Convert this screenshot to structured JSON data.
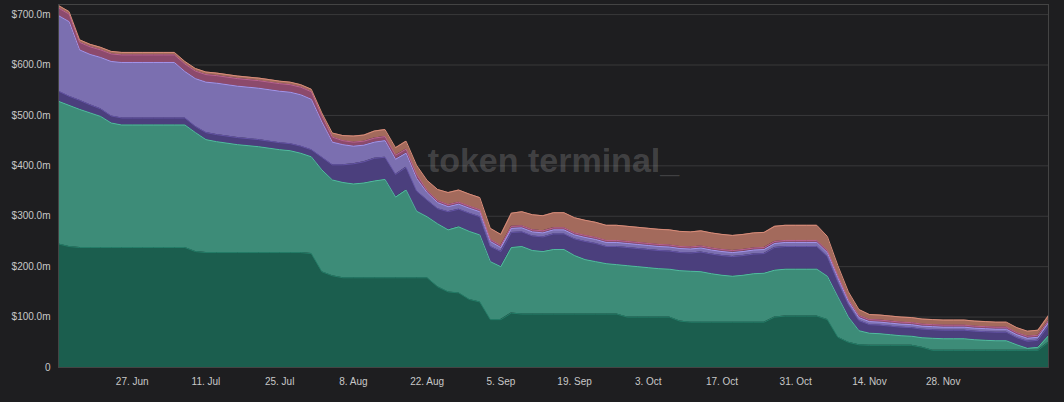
{
  "chart_data": {
    "type": "area",
    "stacked": true,
    "grid": true,
    "annotations": [
      {
        "text": "token terminal_"
      }
    ],
    "categories": [
      null,
      null,
      null,
      null,
      null,
      null,
      null,
      "27. Jun",
      null,
      null,
      null,
      null,
      null,
      null,
      "11. Jul",
      null,
      null,
      null,
      null,
      null,
      null,
      "25. Jul",
      null,
      null,
      null,
      null,
      null,
      null,
      "8. Aug",
      null,
      null,
      null,
      null,
      null,
      null,
      "22. Aug",
      null,
      null,
      null,
      null,
      null,
      null,
      "5. Sep",
      null,
      null,
      null,
      null,
      null,
      null,
      "19. Sep",
      null,
      null,
      null,
      null,
      null,
      null,
      "3. Oct",
      null,
      null,
      null,
      null,
      null,
      null,
      "17. Oct",
      null,
      null,
      null,
      null,
      null,
      null,
      "31. Oct",
      null,
      null,
      null,
      null,
      null,
      null,
      "14. Nov",
      null,
      null,
      null,
      null,
      null,
      null,
      "28. Nov",
      null,
      null,
      null,
      null,
      null,
      null,
      null,
      null,
      null,
      null
    ],
    "ylim": [
      0,
      720
    ],
    "yticks": [
      0,
      {
        "value": 100,
        "label": "$100.0m"
      },
      {
        "value": 200,
        "label": "$200.0m"
      },
      {
        "value": 300,
        "label": "$300.0m"
      },
      {
        "value": 400,
        "label": "$400.0m"
      },
      {
        "value": 500,
        "label": "$500.0m"
      },
      {
        "value": 600,
        "label": "$600.0m"
      },
      {
        "value": 700,
        "label": "$700.0m"
      }
    ],
    "series": [
      {
        "color": "#1b5e4e",
        "values": [
          245,
          240,
          238,
          238,
          238,
          238,
          238,
          238,
          238,
          238,
          238,
          238,
          238,
          230,
          228,
          228,
          228,
          228,
          228,
          228,
          228,
          228,
          228,
          228,
          226,
          190,
          182,
          178,
          178,
          178,
          178,
          178,
          178,
          178,
          178,
          178,
          160,
          150,
          148,
          135,
          130,
          95,
          95,
          108,
          106,
          106,
          106,
          106,
          106,
          106,
          106,
          106,
          106,
          106,
          100,
          100,
          100,
          100,
          100,
          92,
          90,
          90,
          90,
          90,
          90,
          90,
          90,
          90,
          100,
          102,
          102,
          102,
          102,
          95,
          60,
          50,
          45,
          44,
          44,
          44,
          44,
          44,
          40,
          34,
          34,
          34,
          34,
          34,
          34,
          34,
          34,
          34,
          34,
          34,
          50
        ]
      },
      {
        "color": "#3d8c78",
        "values": [
          283,
          280,
          274,
          267,
          260,
          247,
          243,
          243,
          243,
          243,
          243,
          243,
          243,
          236,
          224,
          220,
          217,
          214,
          212,
          210,
          207,
          204,
          202,
          197,
          192,
          202,
          190,
          189,
          186,
          188,
          192,
          195,
          160,
          174,
          132,
          121,
          125,
          123,
          131,
          135,
          133,
          115,
          105,
          130,
          134,
          126,
          124,
          128,
          128,
          116,
          108,
          104,
          100,
          98,
          102,
          100,
          98,
          96,
          95,
          100,
          101,
          100,
          96,
          93,
          91,
          93,
          96,
          97,
          93,
          93,
          93,
          93,
          93,
          86,
          80,
          50,
          28,
          24,
          23,
          21,
          19,
          18,
          19,
          24,
          23,
          23,
          23,
          21,
          20,
          19,
          19,
          11,
          4,
          6,
          13
        ]
      },
      {
        "color": "#4b3f7d",
        "values": [
          20,
          18,
          18,
          16,
          15,
          14,
          14,
          14,
          14,
          14,
          14,
          14,
          14,
          12,
          14,
          14,
          14,
          14,
          14,
          14,
          14,
          14,
          14,
          14,
          14,
          25,
          30,
          35,
          40,
          42,
          45,
          44,
          45,
          45,
          40,
          33,
          30,
          36,
          35,
          36,
          36,
          30,
          30,
          30,
          29,
          29,
          29,
          31,
          31,
          33,
          36,
          36,
          34,
          36,
          36,
          36,
          36,
          36,
          36,
          36,
          36,
          39,
          39,
          39,
          39,
          39,
          39,
          39,
          45,
          45,
          45,
          45,
          45,
          39,
          30,
          25,
          20,
          17,
          17,
          17,
          17,
          17,
          17,
          17,
          17,
          17,
          17,
          17,
          17,
          17,
          17,
          14,
          14,
          14,
          20
        ]
      },
      {
        "color": "#7b6fb0",
        "values": [
          150,
          148,
          100,
          100,
          102,
          108,
          110,
          110,
          110,
          110,
          110,
          110,
          92,
          95,
          100,
          102,
          102,
          102,
          102,
          102,
          102,
          102,
          102,
          102,
          100,
          70,
          45,
          40,
          35,
          33,
          32,
          33,
          30,
          28,
          25,
          15,
          12,
          10,
          10,
          10,
          10,
          10,
          8,
          8,
          8,
          8,
          8,
          8,
          8,
          8,
          8,
          8,
          8,
          8,
          8,
          8,
          8,
          8,
          8,
          8,
          8,
          8,
          8,
          8,
          8,
          8,
          8,
          8,
          8,
          8,
          8,
          8,
          8,
          8,
          8,
          6,
          6,
          6,
          6,
          6,
          6,
          6,
          6,
          6,
          6,
          6,
          6,
          6,
          6,
          6,
          6,
          6,
          6,
          6,
          6
        ]
      },
      {
        "color": "#8c4a6c",
        "values": [
          15,
          15,
          15,
          15,
          15,
          15,
          15,
          15,
          15,
          15,
          15,
          15,
          15,
          15,
          15,
          15,
          15,
          15,
          15,
          15,
          15,
          15,
          15,
          15,
          15,
          12,
          10,
          8,
          8,
          8,
          8,
          8,
          8,
          8,
          8,
          4,
          4,
          4,
          4,
          4,
          4,
          4,
          4,
          4,
          4,
          4,
          4,
          4,
          4,
          4,
          4,
          4,
          4,
          4,
          4,
          4,
          4,
          4,
          4,
          4,
          4,
          4,
          4,
          4,
          4,
          4,
          4,
          4,
          4,
          4,
          4,
          4,
          4,
          4,
          4,
          4,
          4,
          4,
          4,
          4,
          4,
          4,
          4,
          4,
          4,
          4,
          4,
          4,
          4,
          4,
          4,
          4,
          4,
          4,
          4
        ]
      },
      {
        "color": "#a36a5c",
        "values": [
          5,
          5,
          5,
          5,
          5,
          5,
          5,
          5,
          5,
          5,
          5,
          5,
          5,
          5,
          5,
          5,
          5,
          5,
          5,
          5,
          5,
          5,
          5,
          5,
          5,
          6,
          8,
          10,
          12,
          12,
          14,
          14,
          15,
          16,
          18,
          20,
          22,
          24,
          24,
          24,
          24,
          22,
          22,
          26,
          28,
          30,
          30,
          30,
          30,
          30,
          30,
          30,
          30,
          30,
          30,
          30,
          30,
          30,
          30,
          30,
          30,
          30,
          30,
          30,
          30,
          30,
          30,
          30,
          30,
          30,
          30,
          30,
          30,
          28,
          20,
          15,
          12,
          10,
          10,
          10,
          10,
          10,
          10,
          10,
          10,
          10,
          10,
          10,
          10,
          10,
          10,
          10,
          10,
          10,
          10
        ]
      }
    ]
  }
}
